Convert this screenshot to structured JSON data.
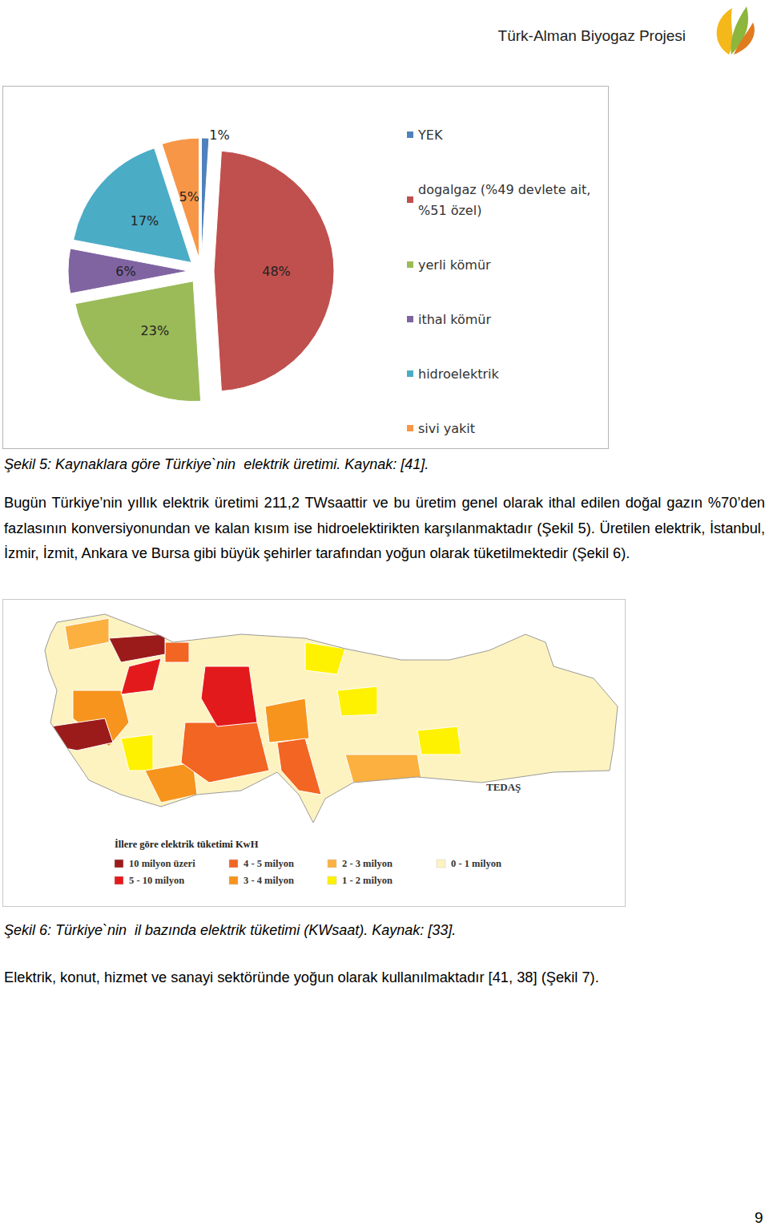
{
  "header": {
    "title": "Türk-Alman Biyogaz Projesi"
  },
  "chart_data": {
    "type": "pie",
    "categories": [
      "YEK",
      "dogalgaz (%49 devlete ait, %51 özel)",
      "yerli kömür",
      "ithal kömür",
      "hidroelektrik",
      "sivi yakit"
    ],
    "values": [
      1,
      48,
      23,
      6,
      17,
      5
    ],
    "value_labels": [
      "1%",
      "48%",
      "23%",
      "6%",
      "17%",
      "5%"
    ],
    "colors": [
      "#4f81bd",
      "#c0504d",
      "#9bbb59",
      "#8064a2",
      "#4bacc6",
      "#f79646"
    ],
    "data_labels": true,
    "legend": "right"
  },
  "captions": [
    "Şekil 5: Kaynaklara göre Türkiye`nin  elektrik üretimi. Kaynak: [41].",
    "Şekil 6: Türkiye`nin  il bazında elektrik tüketimi (KWsaat). Kaynak: [33]."
  ],
  "paragraphs": [
    "Bugün Türkiye’nin  yıllık elektrik üretimi  211,2 TWsaattir ve bu üretim genel olarak ithal edilen doğal gazın %70’den fazlasının konversiyonundan ve kalan kısım ise hidroelektirikten karşılanmaktadır (Şekil 5). Üretilen elektrik, İstanbul, İzmir, İzmit, Ankara ve Bursa gibi büyük şehirler tarafından yoğun olarak tüketilmektedir (Şekil 6).",
    "Elektrik, konut, hizmet ve sanayi sektöründe yoğun olarak kullanılmaktadır [41, 38] (Şekil 7)."
  ],
  "map": {
    "source": "TEDAŞ",
    "legend": {
      "title": "İllere göre elektrik tüketimi KwH",
      "items": [
        {
          "label": "10 milyon üzeri",
          "color": "#9b1b1b"
        },
        {
          "label": "5 - 10 milyon",
          "color": "#e31a1c"
        },
        {
          "label": "4 - 5 milyon",
          "color": "#f26522"
        },
        {
          "label": "3 - 4 milyon",
          "color": "#f7941d"
        },
        {
          "label": "2 - 3 milyon",
          "color": "#fbb040"
        },
        {
          "label": "1 - 2 milyon",
          "color": "#fff200"
        },
        {
          "label": "0 - 1 milyon",
          "color": "#fdf3c0"
        }
      ]
    }
  },
  "page_number": "9"
}
